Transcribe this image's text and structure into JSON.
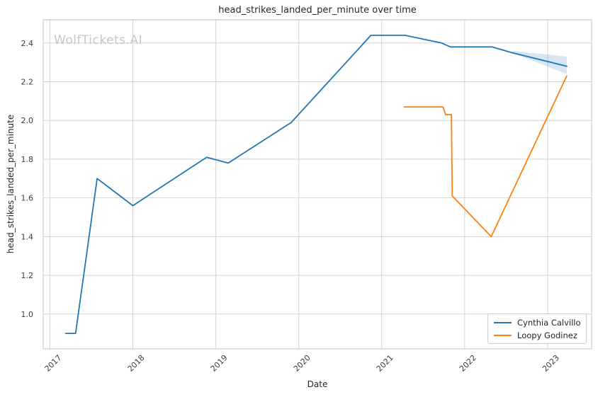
{
  "watermark": "WolfTickets.AI",
  "chart_data": {
    "type": "line",
    "title": "head_strikes_landed_per_minute over time",
    "xlabel": "Date",
    "ylabel": "head_strikes_landed_per_minute",
    "xlim": [
      2016.92,
      2023.53
    ],
    "ylim": [
      0.82,
      2.52
    ],
    "grid": true,
    "grid_color": "#d4d4d4",
    "spine_color": "#cccccc",
    "background_color": "#ffffff",
    "legend_position": "lower right",
    "xticks": [
      {
        "value": 2017,
        "label": "2017"
      },
      {
        "value": 2018,
        "label": "2018"
      },
      {
        "value": 2019,
        "label": "2019"
      },
      {
        "value": 2020,
        "label": "2020"
      },
      {
        "value": 2021,
        "label": "2021"
      },
      {
        "value": 2022,
        "label": "2022"
      },
      {
        "value": 2023,
        "label": "2023"
      }
    ],
    "yticks": [
      {
        "value": 1.0,
        "label": "1.0"
      },
      {
        "value": 1.2,
        "label": "1.2"
      },
      {
        "value": 1.4,
        "label": "1.4"
      },
      {
        "value": 1.6,
        "label": "1.6"
      },
      {
        "value": 1.8,
        "label": "1.8"
      },
      {
        "value": 2.0,
        "label": "2.0"
      },
      {
        "value": 2.2,
        "label": "2.2"
      },
      {
        "value": 2.4,
        "label": "2.4"
      }
    ],
    "series": [
      {
        "name": "Cynthia Calvillo",
        "color": "#1f77b4",
        "x": [
          2017.19,
          2017.31,
          2017.57,
          2018.0,
          2018.89,
          2019.15,
          2019.91,
          2020.87,
          2021.28,
          2021.72,
          2021.83,
          2022.33,
          2022.57,
          2023.23
        ],
        "y": [
          0.9,
          0.9,
          1.7,
          1.56,
          1.81,
          1.78,
          1.99,
          2.44,
          2.44,
          2.4,
          2.38,
          2.38,
          2.35,
          2.28
        ]
      },
      {
        "name": "Loopy Godinez",
        "color": "#ff7f0e",
        "x": [
          2021.27,
          2021.74,
          2021.77,
          2021.84,
          2021.85,
          2022.32,
          2023.23
        ],
        "y": [
          2.07,
          2.07,
          2.03,
          2.03,
          1.61,
          1.4,
          2.23
        ]
      }
    ],
    "forecast_band": {
      "series": "Cynthia Calvillo",
      "color": "#1f77b4",
      "opacity": 0.18,
      "x": [
        2022.57,
        2023.23
      ],
      "upper": [
        2.36,
        2.33
      ],
      "lower": [
        2.35,
        2.24
      ]
    }
  }
}
